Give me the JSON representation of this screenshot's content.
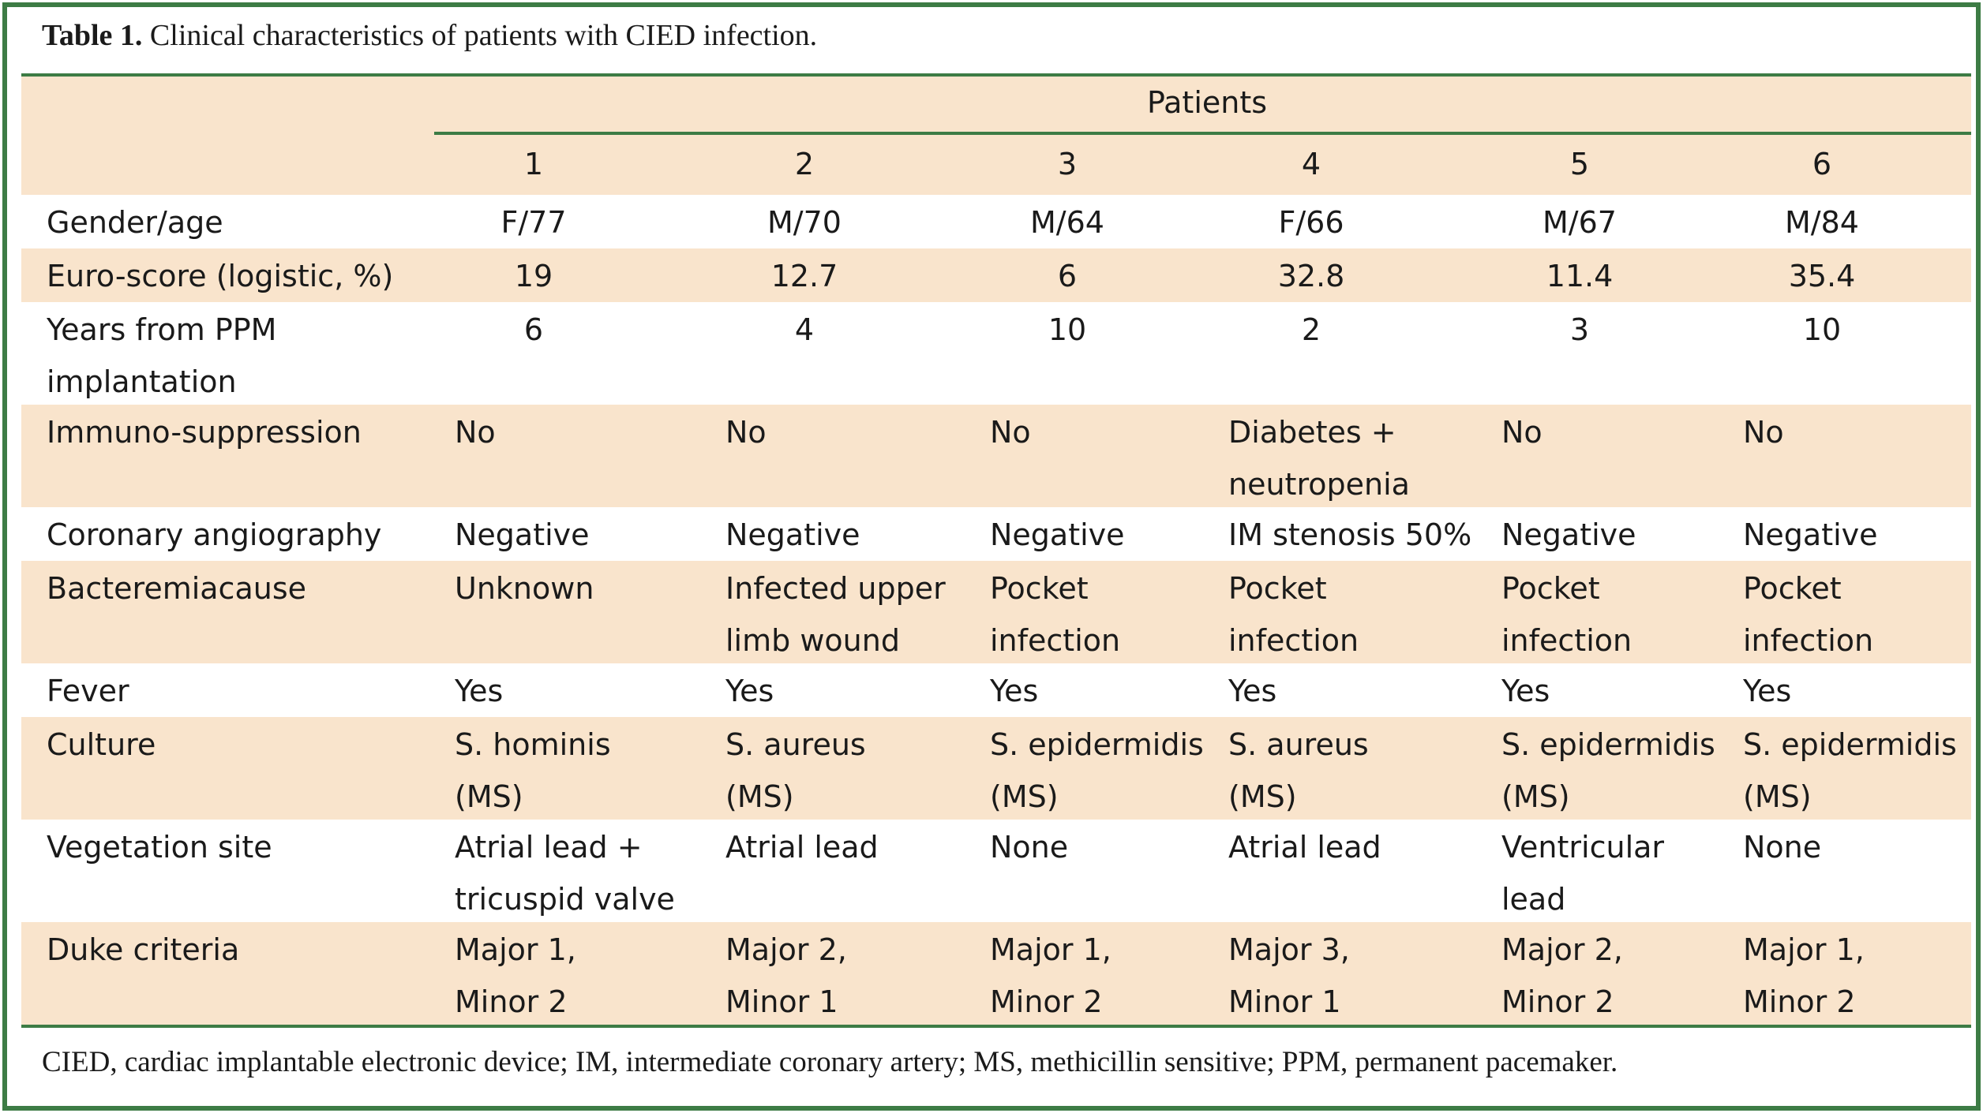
{
  "caption": {
    "label": "Table 1.",
    "text": " Clinical characteristics of patients with CIED infection."
  },
  "header": {
    "group_label": "Patients",
    "patient_numbers": [
      "1",
      "2",
      "3",
      "4",
      "5",
      "6"
    ]
  },
  "rows": [
    {
      "label": [
        "Gender/age"
      ],
      "cells": [
        [
          "F/77"
        ],
        [
          "M/70"
        ],
        [
          "M/64"
        ],
        [
          "F/66"
        ],
        [
          "M/67"
        ],
        [
          "M/84"
        ]
      ]
    },
    {
      "label": [
        "Euro-score (logistic, %)"
      ],
      "cells": [
        [
          "19"
        ],
        [
          "12.7"
        ],
        [
          "6"
        ],
        [
          "32.8"
        ],
        [
          "11.4"
        ],
        [
          "35.4"
        ]
      ]
    },
    {
      "label": [
        "Years from PPM",
        "implantation"
      ],
      "cells": [
        [
          "6"
        ],
        [
          "4"
        ],
        [
          "10"
        ],
        [
          "2"
        ],
        [
          "3"
        ],
        [
          "10"
        ]
      ]
    },
    {
      "label": [
        "Immuno-suppression"
      ],
      "cells": [
        [
          "No"
        ],
        [
          "No"
        ],
        [
          "No"
        ],
        [
          "Diabetes +",
          "neutropenia"
        ],
        [
          "No"
        ],
        [
          "No"
        ]
      ]
    },
    {
      "label": [
        "Coronary angiography"
      ],
      "cells": [
        [
          "Negative"
        ],
        [
          "Negative"
        ],
        [
          "Negative"
        ],
        [
          "IM stenosis 50%"
        ],
        [
          "Negative"
        ],
        [
          "Negative"
        ]
      ]
    },
    {
      "label": [
        "Bacteremiacause"
      ],
      "cells": [
        [
          "Unknown"
        ],
        [
          "Infected upper",
          "limb wound"
        ],
        [
          "Pocket",
          "infection"
        ],
        [
          "Pocket",
          "infection"
        ],
        [
          "Pocket",
          "infection"
        ],
        [
          "Pocket",
          "infection"
        ]
      ]
    },
    {
      "label": [
        "Fever"
      ],
      "cells": [
        [
          "Yes"
        ],
        [
          "Yes"
        ],
        [
          "Yes"
        ],
        [
          "Yes"
        ],
        [
          "Yes"
        ],
        [
          "Yes"
        ]
      ]
    },
    {
      "label": [
        "Culture"
      ],
      "cells": [
        [
          "S. hominis",
          "(MS)"
        ],
        [
          "S. aureus",
          "(MS)"
        ],
        [
          "S. epidermidis",
          "(MS)"
        ],
        [
          "S. aureus",
          "(MS)"
        ],
        [
          "S. epidermidis",
          "(MS)"
        ],
        [
          "S. epidermidis",
          "(MS)"
        ]
      ]
    },
    {
      "label": [
        "Vegetation site"
      ],
      "cells": [
        [
          "Atrial lead +",
          "tricuspid valve"
        ],
        [
          "Atrial lead"
        ],
        [
          "None"
        ],
        [
          "Atrial lead"
        ],
        [
          "Ventricular",
          "lead"
        ],
        [
          "None"
        ]
      ]
    },
    {
      "label": [
        "Duke criteria"
      ],
      "cells": [
        [
          "Major 1,",
          "Minor 2"
        ],
        [
          "Major 2,",
          "Minor 1"
        ],
        [
          "Major 1,",
          "Minor 2"
        ],
        [
          "Major 3,",
          "Minor 1"
        ],
        [
          "Major 2,",
          "Minor 2"
        ],
        [
          "Major 1,",
          "Minor 2"
        ]
      ]
    }
  ],
  "footnote": "CIED, cardiac implantable electronic device; IM, intermediate coronary artery; MS, methicillin sensitive; PPM, permanent pacemaker.",
  "colors": {
    "border": "#3d7c45",
    "row_band": "#f9e4cc",
    "text": "#1a1a1a"
  }
}
